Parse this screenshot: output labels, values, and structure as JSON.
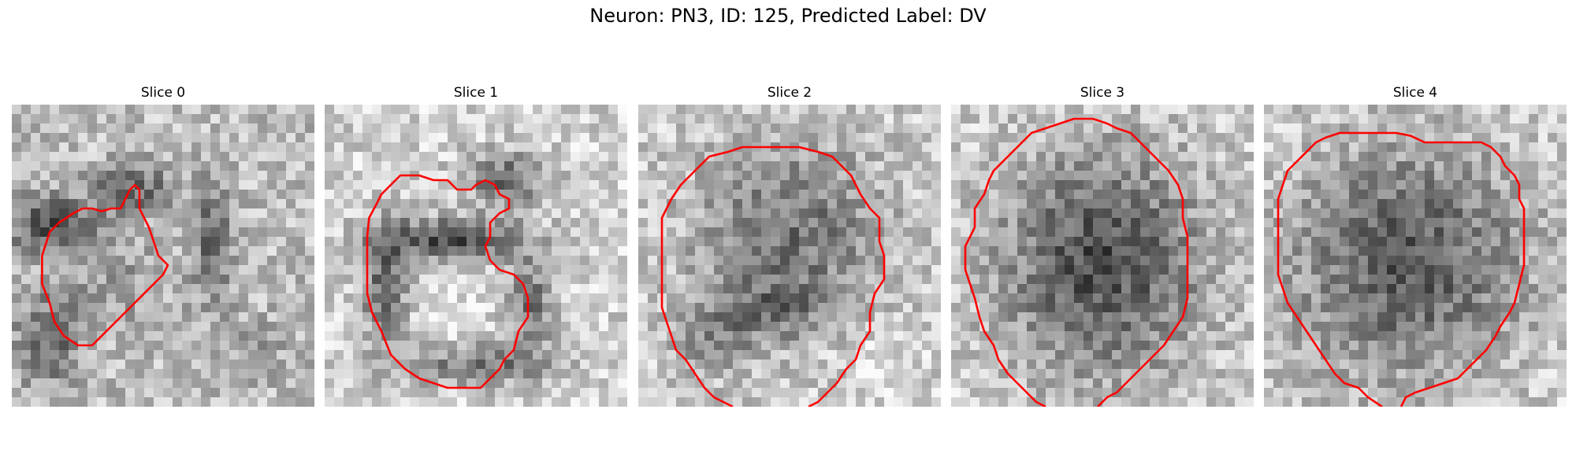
{
  "figure": {
    "title": "Neuron: PN3, ID: 125, Predicted Label: DV"
  },
  "panels": [
    {
      "title": "Slice 0"
    },
    {
      "title": "Slice 1"
    },
    {
      "title": "Slice 2"
    },
    {
      "title": "Slice 3"
    },
    {
      "title": "Slice 4"
    }
  ],
  "style": {
    "contour_color": "#ff0000",
    "colormap": "grayscale"
  }
}
